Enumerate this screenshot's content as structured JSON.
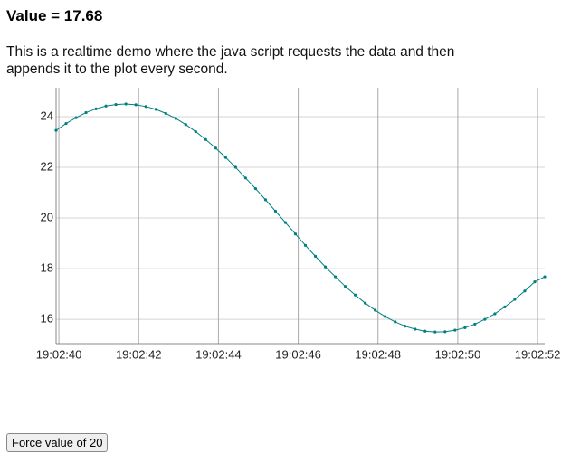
{
  "header": {
    "title": "Value = 17.68"
  },
  "description": "This is a realtime demo where the java script requests the data and then appends it to the plot every second.",
  "chart_data": {
    "type": "line",
    "color": "#008080",
    "grid": true,
    "x": [
      39.93,
      40.18,
      40.43,
      40.68,
      40.93,
      41.18,
      41.43,
      41.68,
      41.93,
      42.18,
      42.43,
      42.68,
      42.93,
      43.18,
      43.43,
      43.68,
      43.93,
      44.18,
      44.43,
      44.68,
      44.93,
      45.18,
      45.43,
      45.68,
      45.93,
      46.18,
      46.43,
      46.68,
      46.93,
      47.18,
      47.43,
      47.68,
      47.93,
      48.18,
      48.43,
      48.68,
      48.93,
      49.18,
      49.43,
      49.68,
      49.93,
      50.18,
      50.43,
      50.68,
      50.93,
      51.18,
      51.43,
      51.68,
      51.93,
      52.18
    ],
    "values": [
      23.46,
      23.73,
      23.96,
      24.16,
      24.31,
      24.42,
      24.48,
      24.5,
      24.47,
      24.4,
      24.29,
      24.13,
      23.93,
      23.69,
      23.41,
      23.1,
      22.76,
      22.39,
      22.0,
      21.58,
      21.16,
      20.72,
      20.27,
      19.82,
      19.37,
      18.92,
      18.49,
      18.07,
      17.68,
      17.3,
      16.96,
      16.64,
      16.36,
      16.11,
      15.9,
      15.73,
      15.61,
      15.53,
      15.5,
      15.51,
      15.57,
      15.67,
      15.81,
      16.0,
      16.22,
      16.49,
      16.79,
      17.12,
      17.48,
      17.68
    ],
    "xlim": [
      39.93,
      52.18
    ],
    "xticks": [
      {
        "value": 40,
        "label": "19:02:40"
      },
      {
        "value": 42,
        "label": "19:02:42"
      },
      {
        "value": 44,
        "label": "19:02:44"
      },
      {
        "value": 46,
        "label": "19:02:46"
      },
      {
        "value": 48,
        "label": "19:02:48"
      },
      {
        "value": 50,
        "label": "19:02:50"
      },
      {
        "value": 52,
        "label": "19:02:52"
      }
    ],
    "ylim": [
      15.04,
      25.0
    ],
    "yticks": [
      16,
      18,
      20,
      22,
      24
    ]
  },
  "button": {
    "label": "Force value of 20"
  }
}
